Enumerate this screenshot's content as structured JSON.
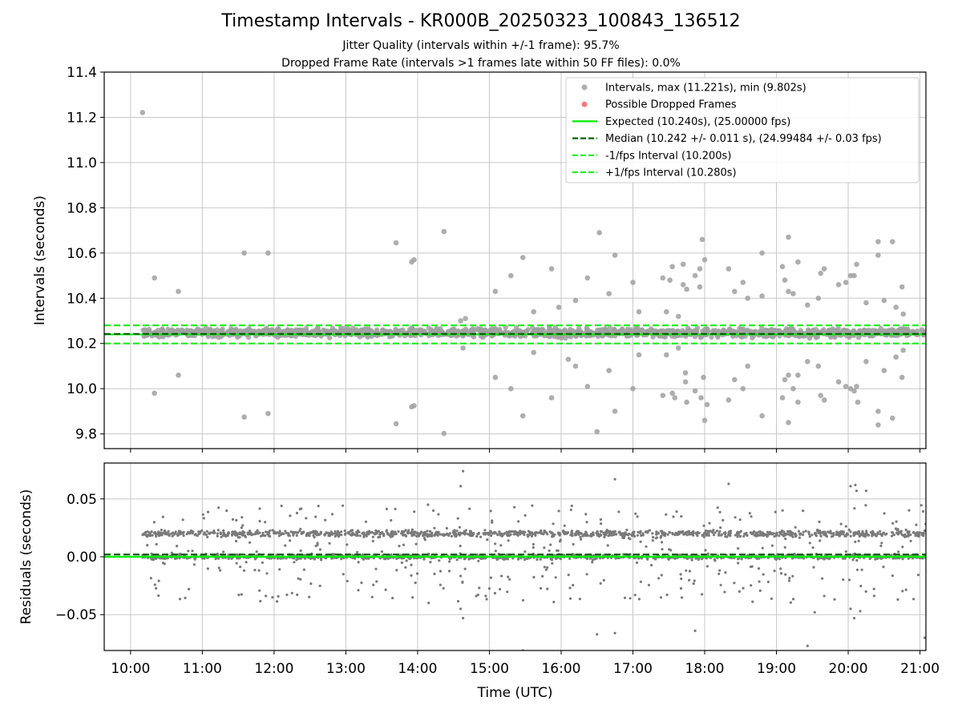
{
  "title": "Timestamp Intervals - KR000B_20250323_100843_136512",
  "subtitle_lines": [
    "Jitter Quality (intervals within +/-1 frame): 95.7%",
    "Dropped Frame Rate (intervals >1 frames late within 50 FF files): 0.0%"
  ],
  "colors": {
    "intervals": "#a0a0a0",
    "dropped": "#ff6060",
    "expected": "#00ee00",
    "median": "#006400",
    "bounds": "#22ee22",
    "residuals": "#7a7a7a",
    "grid": "#c8c8c8"
  },
  "chart_data": [
    {
      "type": "scatter",
      "ylabel": "Intervals (seconds)",
      "xlabel": "",
      "xlim_hours": [
        9.633,
        21.083
      ],
      "ylim": [
        9.735,
        11.4
      ],
      "yticks": [
        9.8,
        10.0,
        10.2,
        10.4,
        10.6,
        10.8,
        11.0,
        11.2,
        11.4
      ],
      "ytick_labels": [
        "9.8",
        "10.0",
        "10.2",
        "10.4",
        "10.6",
        "10.8",
        "11.0",
        "11.2",
        "11.4"
      ],
      "grid": true,
      "legend_position": "top-right",
      "legend": [
        {
          "label": "Intervals, max (11.221s), min (9.802s)",
          "kind": "dot",
          "color": "#a0a0a0"
        },
        {
          "label": "Possible Dropped Frames",
          "kind": "dot",
          "color": "#ff6060"
        },
        {
          "label": "Expected (10.240s), (25.00000 fps)",
          "kind": "solid",
          "color": "#00ee00"
        },
        {
          "label": "Median (10.242 +/- 0.011 s), (24.99484 +/- 0.03 fps)",
          "kind": "dashed",
          "color": "#006400"
        },
        {
          "label": "-1/fps Interval (10.200s)",
          "kind": "dashed",
          "color": "#22ee22"
        },
        {
          "label": "+1/fps Interval (10.280s)",
          "kind": "dashed",
          "color": "#22ee22"
        }
      ],
      "reference_lines": {
        "expected": 10.24,
        "median": 10.242,
        "lower_bound": 10.2,
        "upper_bound": 10.28
      },
      "series": [
        {
          "name": "Intervals, max (11.221s), min (9.802s)",
          "dense_band": {
            "x_start": "10:10",
            "x_end": "21:05",
            "y_min": 10.22,
            "y_max": 10.275
          },
          "outliers": [
            [
              "10:10",
              11.221
            ],
            [
              "10:20",
              10.49
            ],
            [
              "10:20",
              9.98
            ],
            [
              "10:40",
              10.43
            ],
            [
              "10:40",
              10.06
            ],
            [
              "11:35",
              10.6
            ],
            [
              "11:35",
              9.875
            ],
            [
              "11:55",
              10.6
            ],
            [
              "11:55",
              9.89
            ],
            [
              "13:42",
              10.645
            ],
            [
              "13:42",
              9.845
            ],
            [
              "13:55",
              10.56
            ],
            [
              "13:57",
              10.57
            ],
            [
              "13:55",
              9.92
            ],
            [
              "13:57",
              9.925
            ],
            [
              "14:22",
              10.695
            ],
            [
              "14:22",
              9.802
            ],
            [
              "14:40",
              10.31
            ],
            [
              "14:36",
              10.3
            ],
            [
              "14:38",
              10.18
            ],
            [
              "15:05",
              10.43
            ],
            [
              "15:05",
              10.05
            ],
            [
              "15:18",
              10.5
            ],
            [
              "15:18",
              10.0
            ],
            [
              "15:28",
              10.58
            ],
            [
              "15:28",
              9.88
            ],
            [
              "15:37",
              10.34
            ],
            [
              "15:37",
              10.16
            ],
            [
              "15:52",
              10.53
            ],
            [
              "15:52",
              9.96
            ],
            [
              "15:58",
              10.36
            ],
            [
              "16:06",
              10.13
            ],
            [
              "16:08",
              10.23
            ],
            [
              "16:12",
              10.39
            ],
            [
              "16:12",
              10.1
            ],
            [
              "16:22",
              10.49
            ],
            [
              "16:22",
              10.01
            ],
            [
              "16:30",
              9.81
            ],
            [
              "16:32",
              10.69
            ],
            [
              "16:40",
              10.42
            ],
            [
              "16:40",
              10.08
            ],
            [
              "16:45",
              10.59
            ],
            [
              "16:45",
              9.9
            ],
            [
              "17:00",
              10.47
            ],
            [
              "17:00",
              10.0
            ],
            [
              "17:05",
              10.34
            ],
            [
              "17:05",
              10.15
            ],
            [
              "17:25",
              10.49
            ],
            [
              "17:25",
              9.97
            ],
            [
              "17:28",
              10.34
            ],
            [
              "17:28",
              10.15
            ],
            [
              "17:31",
              10.48
            ],
            [
              "17:33",
              10.54
            ],
            [
              "17:33",
              9.98
            ],
            [
              "17:35",
              9.96
            ],
            [
              "17:38",
              10.32
            ],
            [
              "17:38",
              10.18
            ],
            [
              "17:42",
              10.55
            ],
            [
              "17:42",
              10.46
            ],
            [
              "17:45",
              10.44
            ],
            [
              "17:44",
              10.07
            ],
            [
              "17:44",
              10.03
            ],
            [
              "17:45",
              9.94
            ],
            [
              "17:52",
              10.5
            ],
            [
              "17:52",
              9.99
            ],
            [
              "17:56",
              10.53
            ],
            [
              "17:56",
              10.45
            ],
            [
              "17:57",
              9.96
            ],
            [
              "17:58",
              10.66
            ],
            [
              "18:00",
              10.57
            ],
            [
              "17:59",
              10.05
            ],
            [
              "18:00",
              9.86
            ],
            [
              "18:02",
              9.93
            ],
            [
              "18:20",
              10.53
            ],
            [
              "18:20",
              9.95
            ],
            [
              "18:25",
              10.43
            ],
            [
              "18:25",
              10.04
            ],
            [
              "18:32",
              10.47
            ],
            [
              "18:32",
              10.0
            ],
            [
              "18:36",
              10.4
            ],
            [
              "18:36",
              10.1
            ],
            [
              "18:48",
              10.6
            ],
            [
              "18:48",
              9.88
            ],
            [
              "18:48",
              10.41
            ],
            [
              "19:05",
              10.54
            ],
            [
              "19:05",
              9.96
            ],
            [
              "19:07",
              10.48
            ],
            [
              "19:07",
              10.04
            ],
            [
              "19:10",
              10.67
            ],
            [
              "19:10",
              10.43
            ],
            [
              "19:10",
              10.06
            ],
            [
              "19:10",
              9.85
            ],
            [
              "19:14",
              10.42
            ],
            [
              "19:14",
              10.0
            ],
            [
              "19:18",
              10.56
            ],
            [
              "19:18",
              10.06
            ],
            [
              "19:18",
              9.94
            ],
            [
              "19:26",
              10.37
            ],
            [
              "19:26",
              10.12
            ],
            [
              "19:35",
              10.4
            ],
            [
              "19:35",
              10.1
            ],
            [
              "19:37",
              10.51
            ],
            [
              "19:37",
              9.97
            ],
            [
              "19:40",
              10.53
            ],
            [
              "19:40",
              9.95
            ],
            [
              "19:52",
              10.46
            ],
            [
              "19:52",
              10.03
            ],
            [
              "19:58",
              10.47
            ],
            [
              "19:58",
              10.01
            ],
            [
              "20:02",
              10.5
            ],
            [
              "20:02",
              10.0
            ],
            [
              "20:05",
              10.5
            ],
            [
              "20:05",
              9.99
            ],
            [
              "20:07",
              10.55
            ],
            [
              "20:07",
              10.01
            ],
            [
              "20:08",
              9.94
            ],
            [
              "20:15",
              10.38
            ],
            [
              "20:15",
              10.12
            ],
            [
              "20:25",
              10.65
            ],
            [
              "20:25",
              10.59
            ],
            [
              "20:25",
              9.9
            ],
            [
              "20:25",
              9.84
            ],
            [
              "20:30",
              10.39
            ],
            [
              "20:30",
              10.08
            ],
            [
              "20:37",
              10.65
            ],
            [
              "20:37",
              9.87
            ],
            [
              "20:40",
              10.36
            ],
            [
              "20:40",
              10.14
            ],
            [
              "20:45",
              10.45
            ],
            [
              "20:45",
              10.05
            ],
            [
              "20:46",
              10.33
            ],
            [
              "20:46",
              10.17
            ]
          ]
        },
        {
          "name": "Possible Dropped Frames",
          "values": []
        }
      ]
    },
    {
      "type": "scatter",
      "ylabel": "Residuals (seconds)",
      "xlabel": "Time (UTC)",
      "xlim_hours": [
        9.633,
        21.083
      ],
      "ylim": [
        -0.081,
        0.081
      ],
      "yticks": [
        -0.05,
        0.0,
        0.05
      ],
      "ytick_labels": [
        "−0.05",
        "0.00",
        "0.05"
      ],
      "xticks": [
        "10:00",
        "11:00",
        "12:00",
        "13:00",
        "14:00",
        "15:00",
        "16:00",
        "17:00",
        "18:00",
        "19:00",
        "20:00",
        "21:00"
      ],
      "grid": true,
      "reference_lines": {
        "expected": 0.0,
        "median": 0.002
      },
      "series": [
        {
          "name": "Residuals",
          "dense_bands": [
            {
              "x_start": "10:10",
              "x_end": "21:05",
              "center": 0.02,
              "spread": 0.004
            },
            {
              "x_start": "10:10",
              "x_end": "21:05",
              "center": 0.0,
              "spread": 0.003
            }
          ],
          "scatter_range": [
            -0.04,
            0.045
          ],
          "outliers": [
            [
              "14:36",
              0.061
            ],
            [
              "14:38",
              0.074
            ],
            [
              "16:45",
              0.067
            ],
            [
              "20:02",
              0.061
            ],
            [
              "20:07",
              0.057
            ],
            [
              "20:15",
              0.057
            ],
            [
              "18:20",
              0.063
            ],
            [
              "19:26",
              -0.077
            ],
            [
              "15:28",
              -0.081
            ],
            [
              "16:30",
              -0.067
            ],
            [
              "16:45",
              -0.066
            ],
            [
              "17:52",
              -0.064
            ],
            [
              "14:36",
              -0.045
            ],
            [
              "14:38",
              -0.053
            ],
            [
              "20:02",
              -0.045
            ],
            [
              "20:05",
              -0.053
            ],
            [
              "20:10",
              -0.047
            ],
            [
              "21:04",
              -0.07
            ],
            [
              "20:06",
              0.062
            ],
            [
              "19:32",
              -0.048
            ]
          ]
        }
      ]
    }
  ]
}
